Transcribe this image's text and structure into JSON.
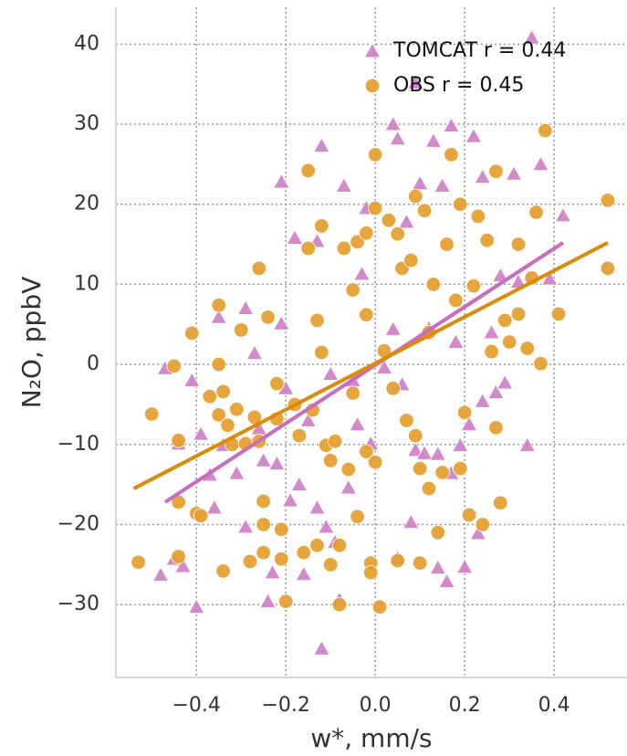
{
  "chart_data": {
    "type": "scatter",
    "xlabel": "w*, mm/s",
    "ylabel": "N₂O, ppbV",
    "xlim": [
      -0.58,
      0.563
    ],
    "ylim": [
      -39.1,
      44.6
    ],
    "xticks": [
      {
        "value": -0.4,
        "label": "−0.4"
      },
      {
        "value": -0.2,
        "label": "−0.2"
      },
      {
        "value": 0,
        "label": "0.0"
      },
      0.2,
      0.4
    ],
    "yticks": [
      {
        "value": -30,
        "label": "−30"
      },
      {
        "value": -20,
        "label": "−20"
      },
      {
        "value": -10,
        "label": "−10"
      },
      0,
      10,
      20,
      30,
      40
    ],
    "grid": true,
    "legend": "upper right",
    "series": [
      {
        "name": "TOMCAT r = 0.44",
        "color": "#cf7fc8",
        "marker": "triangle",
        "fit_color": "#c96cc0",
        "x": [
          -0.48,
          -0.47,
          -0.45,
          -0.44,
          -0.43,
          -0.41,
          -0.4,
          -0.39,
          -0.37,
          -0.36,
          -0.35,
          -0.34,
          -0.31,
          -0.29,
          -0.29,
          -0.27,
          -0.26,
          -0.25,
          -0.24,
          -0.23,
          -0.22,
          -0.21,
          -0.21,
          -0.2,
          -0.19,
          -0.18,
          -0.17,
          -0.16,
          -0.15,
          -0.13,
          -0.13,
          -0.12,
          -0.11,
          -0.1,
          -0.09,
          -0.12,
          -0.08,
          -0.07,
          -0.06,
          -0.05,
          -0.04,
          -0.03,
          -0.02,
          -0.01,
          0.02,
          0.04,
          0.04,
          0.05,
          0.05,
          0.06,
          0.07,
          0.08,
          0.09,
          0.1,
          0.11,
          0.12,
          0.13,
          0.14,
          0.14,
          0.15,
          0.16,
          0.17,
          0.17,
          0.18,
          0.19,
          0.2,
          0.21,
          0.22,
          0.23,
          0.24,
          0.24,
          0.26,
          0.27,
          0.28,
          0.29,
          0.31,
          0.32,
          0.34,
          0.35,
          0.37,
          0.39,
          0.42,
          0.09
        ],
        "values": [
          -26.3,
          -0.5,
          -24.3,
          -9.9,
          -25.2,
          -2,
          -30.3,
          -8.7,
          -13.8,
          -17.9,
          5.9,
          -10.1,
          -13.6,
          7,
          -20.3,
          1.4,
          -8,
          -12,
          -29.6,
          -26,
          -12.4,
          22.8,
          5.1,
          -3,
          -17,
          15.8,
          -15,
          -26.2,
          -7,
          15.4,
          -17.9,
          27.3,
          -20.3,
          -1.2,
          -22.2,
          -35.5,
          -29.4,
          22.3,
          -15.4,
          -2,
          -7.5,
          11.3,
          19.5,
          -9.9,
          -0.4,
          4.4,
          30,
          28.2,
          -24.2,
          -2.5,
          17.8,
          -19.7,
          -10.7,
          22.6,
          -11.1,
          4.5,
          27.9,
          -11.2,
          -25.4,
          22.3,
          -27.1,
          29.8,
          -13.6,
          2.8,
          -10.1,
          -25.3,
          -7.5,
          28.5,
          -21.1,
          -4.6,
          23.4,
          4,
          -3.5,
          11.1,
          -2.3,
          23.8,
          10.3,
          -10.1,
          40.8,
          25,
          10.7,
          18.6,
          35.2
        ],
        "fit": {
          "x": [
            -0.47,
            0.42
          ],
          "values": [
            -17.2,
            15.2
          ]
        }
      },
      {
        "name": "OBS r = 0.45",
        "color": "#e59e2c",
        "marker": "circle",
        "fit_color": "#dd8a08",
        "x": [
          -0.53,
          -0.5,
          -0.45,
          -0.44,
          -0.44,
          -0.44,
          -0.41,
          -0.4,
          -0.39,
          -0.37,
          -0.35,
          -0.35,
          -0.34,
          -0.34,
          -0.35,
          -0.33,
          -0.32,
          -0.31,
          -0.3,
          -0.29,
          -0.28,
          -0.27,
          -0.26,
          -0.26,
          -0.25,
          -0.25,
          -0.25,
          -0.24,
          -0.22,
          -0.22,
          -0.21,
          -0.21,
          -0.2,
          -0.18,
          -0.17,
          -0.16,
          -0.15,
          -0.15,
          -0.14,
          -0.13,
          -0.13,
          -0.12,
          -0.12,
          -0.11,
          -0.1,
          -0.1,
          -0.09,
          -0.08,
          -0.08,
          -0.07,
          -0.06,
          -0.05,
          -0.05,
          -0.04,
          -0.04,
          -0.02,
          -0.02,
          -0.02,
          -0.01,
          -0.01,
          0,
          0,
          0,
          0.01,
          0.02,
          0.03,
          0.04,
          0.05,
          0.05,
          0.06,
          0.07,
          0.08,
          0.09,
          0.09,
          0.1,
          0.1,
          0.11,
          0.12,
          0.12,
          0.13,
          0.14,
          0.15,
          0.16,
          0.17,
          0.18,
          0.19,
          0.19,
          0.2,
          0.21,
          0.22,
          0.23,
          0.24,
          0.25,
          0.26,
          0.27,
          0.27,
          0.28,
          0.29,
          0.3,
          0.32,
          0.32,
          0.34,
          0.35,
          0.36,
          0.37,
          0.38,
          0.41,
          0.52,
          0.52
        ],
        "values": [
          -24.7,
          -6.2,
          -0.2,
          -9.5,
          -17.2,
          -24,
          3.9,
          -18.6,
          -18.9,
          -4,
          0,
          7.4,
          -3.4,
          -25.8,
          -6.3,
          -7.6,
          -10,
          -5.6,
          4.3,
          -9.9,
          -24.6,
          -6.6,
          12,
          -9.6,
          -17.1,
          -20,
          -23.5,
          5.9,
          -2.4,
          -6.8,
          -20.6,
          -24.3,
          -29.6,
          -5,
          -8.9,
          -23.5,
          24.2,
          14.5,
          -5.7,
          5.5,
          -22.6,
          17.3,
          1.5,
          -10.1,
          -12,
          -25,
          -9.6,
          -22.6,
          -30,
          14.5,
          -13.1,
          9.3,
          -3.6,
          15.3,
          -19,
          16.4,
          6.2,
          -10.9,
          -24.8,
          -26,
          26.2,
          19.5,
          -12.2,
          -30.3,
          1.7,
          18,
          -3,
          -24.5,
          16.3,
          12,
          -7,
          13,
          21,
          -8.9,
          -24.8,
          -13,
          19.2,
          4,
          -15.5,
          10,
          -21,
          -13.5,
          15,
          26.2,
          8,
          20,
          -13,
          -6,
          -18.8,
          9.8,
          18.5,
          -20,
          15.5,
          1.6,
          24.1,
          -7.9,
          -17.3,
          5.5,
          2.8,
          15,
          6.3,
          2,
          10.8,
          19,
          0.1,
          29.2,
          6.3,
          20.5,
          12
        ],
        "fit": {
          "x": [
            -0.54,
            0.52
          ],
          "values": [
            -15.5,
            15.2
          ]
        }
      }
    ]
  }
}
